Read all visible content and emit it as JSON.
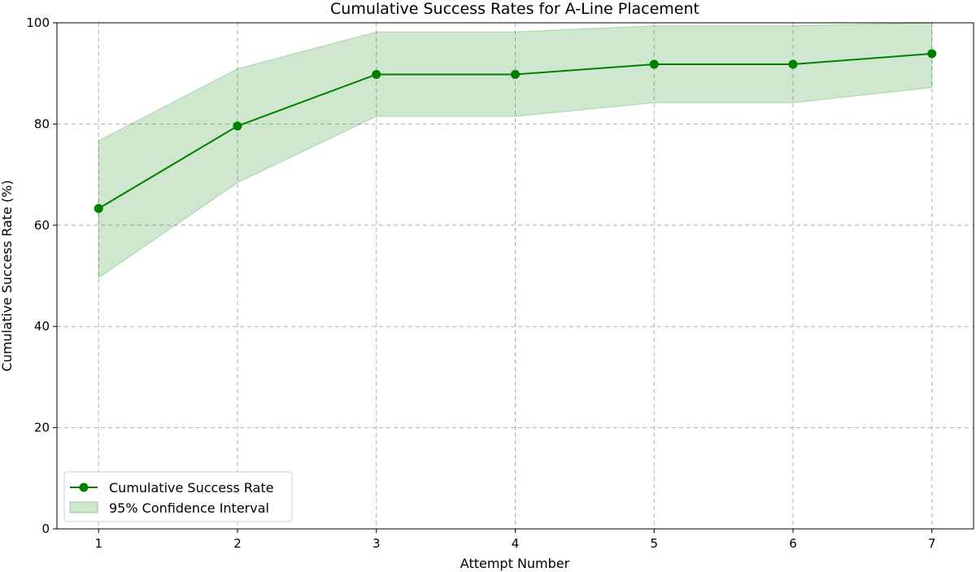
{
  "chart_data": {
    "type": "line",
    "title": "Cumulative Success Rates for A-Line Placement",
    "xlabel": "Attempt Number",
    "ylabel": "Cumulative Success Rate (%)",
    "x": [
      1,
      2,
      3,
      4,
      5,
      6,
      7
    ],
    "xlim": [
      0.7,
      7.3
    ],
    "ylim": [
      0,
      100
    ],
    "xticks": [
      1,
      2,
      3,
      4,
      5,
      6,
      7
    ],
    "yticks": [
      0,
      20,
      40,
      60,
      80,
      100
    ],
    "grid": true,
    "legend_position": "lower-left",
    "series": [
      {
        "name": "Cumulative Success Rate",
        "kind": "line-marker",
        "color": "#008000",
        "values": [
          63.3,
          79.6,
          89.8,
          89.8,
          91.8,
          91.8,
          93.9
        ]
      }
    ],
    "bands": [
      {
        "name": "95% Confidence Interval",
        "color": "#008000",
        "lower": [
          49.6,
          68.4,
          81.5,
          81.5,
          84.2,
          84.2,
          87.2
        ],
        "upper": [
          76.7,
          90.9,
          98.2,
          98.2,
          99.4,
          99.4,
          100.0
        ]
      }
    ]
  }
}
